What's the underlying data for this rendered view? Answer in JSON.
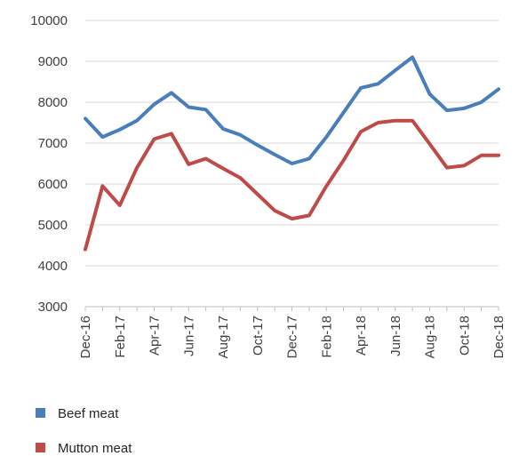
{
  "chart_data": {
    "type": "line",
    "x": [
      "Dec-16",
      "Jan-17",
      "Feb-17",
      "Mar-17",
      "Apr-17",
      "May-17",
      "Jun-17",
      "Jul-17",
      "Aug-17",
      "Sep-17",
      "Oct-17",
      "Nov-17",
      "Dec-17",
      "Jan-18",
      "Feb-18",
      "Mar-18",
      "Apr-18",
      "May-18",
      "Jun-18",
      "Jul-18",
      "Aug-18",
      "Sep-18",
      "Oct-18",
      "Nov-18",
      "Dec-18"
    ],
    "x_tick_labels": [
      "Dec-16",
      "Feb-17",
      "Apr-17",
      "Jun-17",
      "Aug-17",
      "Oct-17",
      "Dec-17",
      "Feb-18",
      "Apr-18",
      "Jun-18",
      "Aug-18",
      "Oct-18",
      "Dec-18"
    ],
    "y_ticks": [
      3000,
      4000,
      5000,
      6000,
      7000,
      8000,
      9000,
      10000
    ],
    "ylim": [
      3000,
      10000
    ],
    "grid": true,
    "legend_position": "bottom-left",
    "series": [
      {
        "name": "Beef meat",
        "color": "#4a7ebb",
        "values": [
          7600,
          7150,
          7330,
          7550,
          7950,
          8230,
          7880,
          7820,
          7350,
          7200,
          6950,
          6720,
          6500,
          6620,
          7150,
          7750,
          8350,
          8450,
          8780,
          9100,
          8200,
          7800,
          7850,
          8000,
          8320
        ]
      },
      {
        "name": "Mutton meat",
        "color": "#be4b48",
        "values": [
          4400,
          5950,
          5480,
          6400,
          7100,
          7230,
          6480,
          6620,
          6380,
          6150,
          5750,
          5350,
          5150,
          5230,
          5950,
          6580,
          7280,
          7500,
          7550,
          7550,
          6980,
          6400,
          6450,
          6700,
          6700
        ]
      }
    ]
  }
}
